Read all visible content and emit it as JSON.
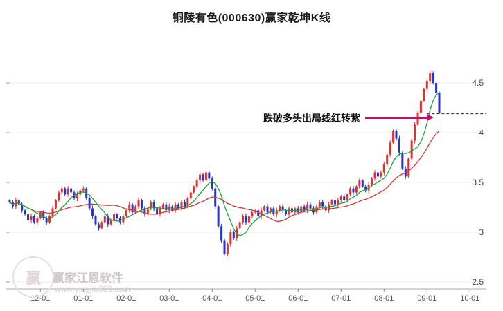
{
  "title": "铜陵有色(000630)赢家乾坤K线",
  "annotation": {
    "text": "跌破多头出局线红转紫",
    "color": "#cc0a6e",
    "price_level": 4.19
  },
  "watermark": {
    "brand": "赢家江恩软件",
    "url": "www.yingjia360.com",
    "logo_char": "赢"
  },
  "chart_data": {
    "type": "candlestick",
    "title": "铜陵有色(000630)赢家乾坤K线",
    "x_ticks": [
      "12-01",
      "01-01",
      "02-01",
      "03-01",
      "04-01",
      "05-01",
      "06-01",
      "07-01",
      "08-01",
      "09-01",
      "10-01"
    ],
    "y_ticks": [
      "2.5",
      "3",
      "3.5",
      "4",
      "4.5"
    ],
    "ylim": [
      2.45,
      4.75
    ],
    "first_tick_index": 10,
    "candles_per_month": 14,
    "colors": {
      "up": "#e03131",
      "down": "#2433cc"
    },
    "dashed_level": 4.19,
    "ma_series": [
      {
        "name": "red-ma-slow",
        "window": 21,
        "color": "#e03131"
      },
      {
        "name": "green-ma-fast",
        "window": 8,
        "color": "#18a43c"
      }
    ],
    "closes": [
      3.3,
      3.26,
      3.32,
      3.28,
      3.22,
      3.18,
      3.12,
      3.16,
      3.1,
      3.14,
      3.2,
      3.14,
      3.1,
      3.16,
      3.24,
      3.32,
      3.4,
      3.44,
      3.38,
      3.44,
      3.4,
      3.34,
      3.38,
      3.42,
      3.44,
      3.34,
      3.24,
      3.16,
      3.08,
      3.04,
      3.1,
      3.16,
      3.08,
      3.12,
      3.18,
      3.14,
      3.1,
      3.16,
      3.22,
      3.28,
      3.2,
      3.26,
      3.32,
      3.24,
      3.18,
      3.24,
      3.3,
      3.24,
      3.18,
      3.24,
      3.28,
      3.22,
      3.26,
      3.22,
      3.28,
      3.24,
      3.3,
      3.26,
      3.34,
      3.4,
      3.46,
      3.52,
      3.58,
      3.52,
      3.6,
      3.54,
      3.44,
      3.26,
      3.06,
      2.92,
      2.78,
      2.88,
      3.0,
      2.94,
      3.04,
      3.1,
      3.16,
      3.1,
      3.16,
      3.2,
      3.22,
      3.16,
      3.22,
      3.26,
      3.2,
      3.24,
      3.18,
      3.22,
      3.26,
      3.22,
      3.18,
      3.24,
      3.2,
      3.24,
      3.2,
      3.26,
      3.22,
      3.28,
      3.24,
      3.2,
      3.26,
      3.3,
      3.26,
      3.22,
      3.28,
      3.32,
      3.28,
      3.32,
      3.36,
      3.32,
      3.38,
      3.44,
      3.4,
      3.46,
      3.52,
      3.46,
      3.42,
      3.48,
      3.54,
      3.6,
      3.56,
      3.6,
      3.68,
      3.78,
      3.9,
      4.02,
      3.94,
      3.8,
      3.64,
      3.56,
      3.74,
      3.92,
      4.08,
      4.2,
      4.32,
      4.44,
      4.52,
      4.6,
      4.5,
      4.4,
      4.2
    ]
  }
}
